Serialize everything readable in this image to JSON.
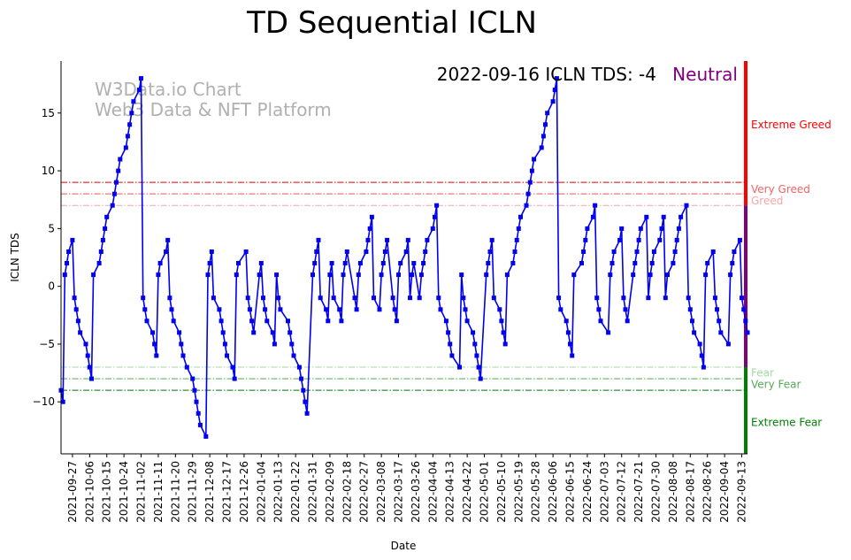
{
  "chart_data": {
    "type": "line",
    "title": "TD Sequential ICLN",
    "xlabel": "Date",
    "ylabel": "ICLN TDS",
    "ylim": [
      -14.5,
      19.5
    ],
    "yticks": [
      -10,
      -5,
      0,
      5,
      10,
      15
    ],
    "x_start": "2021-09-21",
    "x_end": "2022-09-16",
    "xticks": [
      "2021-09-27",
      "2021-10-06",
      "2021-10-15",
      "2021-10-24",
      "2021-11-02",
      "2021-11-11",
      "2021-11-20",
      "2021-11-29",
      "2021-12-08",
      "2021-12-17",
      "2021-12-26",
      "2022-01-04",
      "2022-01-13",
      "2022-01-22",
      "2022-01-31",
      "2022-02-09",
      "2022-02-18",
      "2022-02-27",
      "2022-03-08",
      "2022-03-17",
      "2022-03-26",
      "2022-04-04",
      "2022-04-13",
      "2022-04-22",
      "2022-05-01",
      "2022-05-10",
      "2022-05-19",
      "2022-05-28",
      "2022-06-06",
      "2022-06-15",
      "2022-06-24",
      "2022-07-03",
      "2022-07-12",
      "2022-07-21",
      "2022-07-30",
      "2022-08-08",
      "2022-08-17",
      "2022-08-26",
      "2022-09-04",
      "2022-09-13"
    ],
    "annotation": {
      "text": "2022-09-16 ICLN TDS: -4",
      "status": "Neutral",
      "status_color": "#800080"
    },
    "watermark": {
      "line1": "W3Data.io Chart",
      "line2": "Web3 Data & NFT Platform"
    },
    "thresholds": [
      {
        "label": "Extreme Greed",
        "value": 9,
        "color": "#dd0000"
      },
      {
        "label": "Very Greed",
        "value": 8,
        "color": "#ee5555"
      },
      {
        "label": "Greed",
        "value": 7,
        "color": "#f4a6a6"
      },
      {
        "label": "Fear",
        "value": -7,
        "color": "#a6d8a6"
      },
      {
        "label": "Very Fear",
        "value": -8,
        "color": "#55aa55"
      },
      {
        "label": "Extreme Fear",
        "value": -9,
        "color": "#007700"
      }
    ],
    "zone_labels": [
      {
        "text": "Extreme Greed",
        "y": 14,
        "color": "#ff0000"
      },
      {
        "text": "Very Greed",
        "y": 8.4,
        "color": "#f06464"
      },
      {
        "text": "Greed",
        "y": 7.4,
        "color": "#f4a6a6"
      },
      {
        "text": "Fear",
        "y": -7.5,
        "color": "#a6d8a6"
      },
      {
        "text": "Very Fear",
        "y": -8.5,
        "color": "#55aa55"
      },
      {
        "text": "Extreme Fear",
        "y": -11.8,
        "color": "#008000"
      }
    ],
    "side_bar": [
      {
        "from": 7,
        "to": 19.5,
        "color": "#ff0000"
      },
      {
        "from": -7,
        "to": 7,
        "color": "#800080"
      },
      {
        "from": -14.5,
        "to": -7,
        "color": "#008000"
      }
    ],
    "series": [
      {
        "color": "#0000ee",
        "points": [
          [
            "2021-09-21",
            -9
          ],
          [
            "2021-09-22",
            -10
          ],
          [
            "2021-09-23",
            1
          ],
          [
            "2021-09-24",
            2
          ],
          [
            "2021-09-25",
            3
          ],
          [
            "2021-09-27",
            4
          ],
          [
            "2021-09-28",
            -1
          ],
          [
            "2021-09-29",
            -2
          ],
          [
            "2021-09-30",
            -3
          ],
          [
            "2021-10-01",
            -4
          ],
          [
            "2021-10-04",
            -5
          ],
          [
            "2021-10-05",
            -6
          ],
          [
            "2021-10-06",
            -7
          ],
          [
            "2021-10-07",
            -8
          ],
          [
            "2021-10-08",
            1
          ],
          [
            "2021-10-11",
            2
          ],
          [
            "2021-10-12",
            3
          ],
          [
            "2021-10-13",
            4
          ],
          [
            "2021-10-14",
            5
          ],
          [
            "2021-10-15",
            6
          ],
          [
            "2021-10-18",
            7
          ],
          [
            "2021-10-19",
            8
          ],
          [
            "2021-10-20",
            9
          ],
          [
            "2021-10-21",
            10
          ],
          [
            "2021-10-22",
            11
          ],
          [
            "2021-10-25",
            12
          ],
          [
            "2021-10-26",
            13
          ],
          [
            "2021-10-27",
            14
          ],
          [
            "2021-10-28",
            15
          ],
          [
            "2021-10-29",
            16
          ],
          [
            "2021-11-01",
            17
          ],
          [
            "2021-11-02",
            18
          ],
          [
            "2021-11-03",
            -1
          ],
          [
            "2021-11-04",
            -2
          ],
          [
            "2021-11-05",
            -3
          ],
          [
            "2021-11-08",
            -4
          ],
          [
            "2021-11-09",
            -5
          ],
          [
            "2021-11-10",
            -6
          ],
          [
            "2021-11-11",
            1
          ],
          [
            "2021-11-12",
            2
          ],
          [
            "2021-11-15",
            3
          ],
          [
            "2021-11-16",
            4
          ],
          [
            "2021-11-17",
            -1
          ],
          [
            "2021-11-18",
            -2
          ],
          [
            "2021-11-19",
            -3
          ],
          [
            "2021-11-22",
            -4
          ],
          [
            "2021-11-23",
            -5
          ],
          [
            "2021-11-24",
            -6
          ],
          [
            "2021-11-26",
            -7
          ],
          [
            "2021-11-29",
            -8
          ],
          [
            "2021-11-30",
            -9
          ],
          [
            "2021-12-01",
            -10
          ],
          [
            "2021-12-02",
            -11
          ],
          [
            "2021-12-03",
            -12
          ],
          [
            "2021-12-06",
            -13
          ],
          [
            "2021-12-07",
            1
          ],
          [
            "2021-12-08",
            2
          ],
          [
            "2021-12-09",
            3
          ],
          [
            "2021-12-10",
            -1
          ],
          [
            "2021-12-13",
            -2
          ],
          [
            "2021-12-14",
            -3
          ],
          [
            "2021-12-15",
            -4
          ],
          [
            "2021-12-16",
            -5
          ],
          [
            "2021-12-17",
            -6
          ],
          [
            "2021-12-20",
            -7
          ],
          [
            "2021-12-21",
            -8
          ],
          [
            "2021-12-22",
            1
          ],
          [
            "2021-12-23",
            2
          ],
          [
            "2021-12-27",
            3
          ],
          [
            "2021-12-28",
            -1
          ],
          [
            "2021-12-29",
            -2
          ],
          [
            "2021-12-30",
            -3
          ],
          [
            "2021-12-31",
            -4
          ],
          [
            "2022-01-03",
            1
          ],
          [
            "2022-01-04",
            2
          ],
          [
            "2022-01-05",
            -1
          ],
          [
            "2022-01-06",
            -2
          ],
          [
            "2022-01-07",
            -3
          ],
          [
            "2022-01-10",
            -4
          ],
          [
            "2022-01-11",
            -5
          ],
          [
            "2022-01-12",
            1
          ],
          [
            "2022-01-13",
            -1
          ],
          [
            "2022-01-14",
            -2
          ],
          [
            "2022-01-18",
            -3
          ],
          [
            "2022-01-19",
            -4
          ],
          [
            "2022-01-20",
            -5
          ],
          [
            "2022-01-21",
            -6
          ],
          [
            "2022-01-24",
            -7
          ],
          [
            "2022-01-25",
            -8
          ],
          [
            "2022-01-26",
            -9
          ],
          [
            "2022-01-27",
            -10
          ],
          [
            "2022-01-28",
            -11
          ],
          [
            "2022-01-31",
            1
          ],
          [
            "2022-02-01",
            2
          ],
          [
            "2022-02-02",
            3
          ],
          [
            "2022-02-03",
            4
          ],
          [
            "2022-02-04",
            -1
          ],
          [
            "2022-02-07",
            -2
          ],
          [
            "2022-02-08",
            -3
          ],
          [
            "2022-02-09",
            1
          ],
          [
            "2022-02-10",
            2
          ],
          [
            "2022-02-11",
            -1
          ],
          [
            "2022-02-14",
            -2
          ],
          [
            "2022-02-15",
            -3
          ],
          [
            "2022-02-16",
            1
          ],
          [
            "2022-02-17",
            2
          ],
          [
            "2022-02-18",
            3
          ],
          [
            "2022-02-22",
            -1
          ],
          [
            "2022-02-23",
            -2
          ],
          [
            "2022-02-24",
            1
          ],
          [
            "2022-02-25",
            2
          ],
          [
            "2022-02-28",
            3
          ],
          [
            "2022-03-01",
            4
          ],
          [
            "2022-03-02",
            5
          ],
          [
            "2022-03-03",
            6
          ],
          [
            "2022-03-04",
            -1
          ],
          [
            "2022-03-07",
            -2
          ],
          [
            "2022-03-08",
            1
          ],
          [
            "2022-03-09",
            2
          ],
          [
            "2022-03-10",
            3
          ],
          [
            "2022-03-11",
            4
          ],
          [
            "2022-03-14",
            -1
          ],
          [
            "2022-03-15",
            -2
          ],
          [
            "2022-03-16",
            -3
          ],
          [
            "2022-03-17",
            1
          ],
          [
            "2022-03-18",
            2
          ],
          [
            "2022-03-21",
            3
          ],
          [
            "2022-03-22",
            4
          ],
          [
            "2022-03-23",
            -1
          ],
          [
            "2022-03-24",
            1
          ],
          [
            "2022-03-25",
            2
          ],
          [
            "2022-03-28",
            -1
          ],
          [
            "2022-03-29",
            1
          ],
          [
            "2022-03-30",
            2
          ],
          [
            "2022-03-31",
            3
          ],
          [
            "2022-04-01",
            4
          ],
          [
            "2022-04-04",
            5
          ],
          [
            "2022-04-05",
            6
          ],
          [
            "2022-04-06",
            7
          ],
          [
            "2022-04-07",
            -1
          ],
          [
            "2022-04-08",
            -2
          ],
          [
            "2022-04-11",
            -3
          ],
          [
            "2022-04-12",
            -4
          ],
          [
            "2022-04-13",
            -5
          ],
          [
            "2022-04-14",
            -6
          ],
          [
            "2022-04-18",
            -7
          ],
          [
            "2022-04-19",
            1
          ],
          [
            "2022-04-20",
            -1
          ],
          [
            "2022-04-21",
            -2
          ],
          [
            "2022-04-22",
            -3
          ],
          [
            "2022-04-25",
            -4
          ],
          [
            "2022-04-26",
            -5
          ],
          [
            "2022-04-27",
            -6
          ],
          [
            "2022-04-28",
            -7
          ],
          [
            "2022-04-29",
            -8
          ],
          [
            "2022-05-02",
            1
          ],
          [
            "2022-05-03",
            2
          ],
          [
            "2022-05-04",
            3
          ],
          [
            "2022-05-05",
            4
          ],
          [
            "2022-05-06",
            -1
          ],
          [
            "2022-05-09",
            -2
          ],
          [
            "2022-05-10",
            -3
          ],
          [
            "2022-05-11",
            -4
          ],
          [
            "2022-05-12",
            -5
          ],
          [
            "2022-05-13",
            1
          ],
          [
            "2022-05-16",
            2
          ],
          [
            "2022-05-17",
            3
          ],
          [
            "2022-05-18",
            4
          ],
          [
            "2022-05-19",
            5
          ],
          [
            "2022-05-20",
            6
          ],
          [
            "2022-05-23",
            7
          ],
          [
            "2022-05-24",
            8
          ],
          [
            "2022-05-25",
            9
          ],
          [
            "2022-05-26",
            10
          ],
          [
            "2022-05-27",
            11
          ],
          [
            "2022-05-31",
            12
          ],
          [
            "2022-06-01",
            13
          ],
          [
            "2022-06-02",
            14
          ],
          [
            "2022-06-03",
            15
          ],
          [
            "2022-06-06",
            16
          ],
          [
            "2022-06-07",
            17
          ],
          [
            "2022-06-08",
            18
          ],
          [
            "2022-06-09",
            -1
          ],
          [
            "2022-06-10",
            -2
          ],
          [
            "2022-06-13",
            -3
          ],
          [
            "2022-06-14",
            -4
          ],
          [
            "2022-06-15",
            -5
          ],
          [
            "2022-06-16",
            -6
          ],
          [
            "2022-06-17",
            1
          ],
          [
            "2022-06-21",
            2
          ],
          [
            "2022-06-22",
            3
          ],
          [
            "2022-06-23",
            4
          ],
          [
            "2022-06-24",
            5
          ],
          [
            "2022-06-27",
            6
          ],
          [
            "2022-06-28",
            7
          ],
          [
            "2022-06-29",
            -1
          ],
          [
            "2022-06-30",
            -2
          ],
          [
            "2022-07-01",
            -3
          ],
          [
            "2022-07-05",
            -4
          ],
          [
            "2022-07-06",
            1
          ],
          [
            "2022-07-07",
            2
          ],
          [
            "2022-07-08",
            3
          ],
          [
            "2022-07-11",
            4
          ],
          [
            "2022-07-12",
            5
          ],
          [
            "2022-07-13",
            -1
          ],
          [
            "2022-07-14",
            -2
          ],
          [
            "2022-07-15",
            -3
          ],
          [
            "2022-07-18",
            1
          ],
          [
            "2022-07-19",
            2
          ],
          [
            "2022-07-20",
            3
          ],
          [
            "2022-07-21",
            4
          ],
          [
            "2022-07-22",
            5
          ],
          [
            "2022-07-25",
            6
          ],
          [
            "2022-07-26",
            -1
          ],
          [
            "2022-07-27",
            1
          ],
          [
            "2022-07-28",
            2
          ],
          [
            "2022-07-29",
            3
          ],
          [
            "2022-08-01",
            4
          ],
          [
            "2022-08-02",
            5
          ],
          [
            "2022-08-03",
            6
          ],
          [
            "2022-08-04",
            -1
          ],
          [
            "2022-08-05",
            1
          ],
          [
            "2022-08-08",
            2
          ],
          [
            "2022-08-09",
            3
          ],
          [
            "2022-08-10",
            4
          ],
          [
            "2022-08-11",
            5
          ],
          [
            "2022-08-12",
            6
          ],
          [
            "2022-08-15",
            7
          ],
          [
            "2022-08-16",
            -1
          ],
          [
            "2022-08-17",
            -2
          ],
          [
            "2022-08-18",
            -3
          ],
          [
            "2022-08-19",
            -4
          ],
          [
            "2022-08-22",
            -5
          ],
          [
            "2022-08-23",
            -6
          ],
          [
            "2022-08-24",
            -7
          ],
          [
            "2022-08-25",
            1
          ],
          [
            "2022-08-26",
            2
          ],
          [
            "2022-08-29",
            3
          ],
          [
            "2022-08-30",
            -1
          ],
          [
            "2022-08-31",
            -2
          ],
          [
            "2022-09-01",
            -3
          ],
          [
            "2022-09-02",
            -4
          ],
          [
            "2022-09-06",
            -5
          ],
          [
            "2022-09-07",
            1
          ],
          [
            "2022-09-08",
            2
          ],
          [
            "2022-09-09",
            3
          ],
          [
            "2022-09-12",
            4
          ],
          [
            "2022-09-13",
            -1
          ],
          [
            "2022-09-14",
            -2
          ],
          [
            "2022-09-15",
            -3
          ],
          [
            "2022-09-16",
            -4
          ]
        ]
      }
    ]
  }
}
